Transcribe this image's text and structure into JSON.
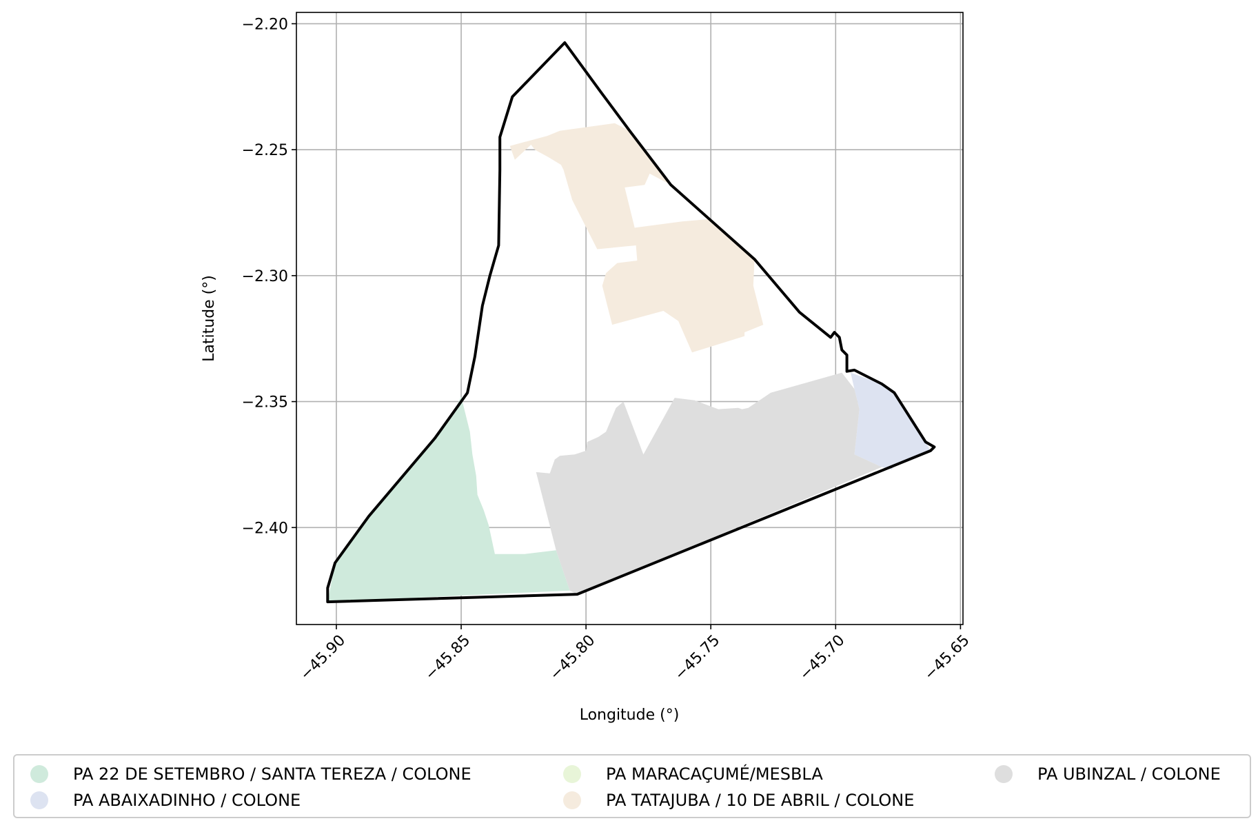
{
  "chart_data": {
    "type": "map",
    "xlabel": "Longitude (°)",
    "ylabel": "Latitude (°)",
    "xlim": [
      -45.916,
      -45.649
    ],
    "ylim": [
      -2.4385,
      -2.1955
    ],
    "xticks": [
      -45.9,
      -45.85,
      -45.8,
      -45.75,
      -45.7,
      -45.65
    ],
    "xtick_labels": [
      "−45.90",
      "−45.85",
      "−45.80",
      "−45.75",
      "−45.70",
      "−45.65"
    ],
    "yticks": [
      -2.2,
      -2.25,
      -2.3,
      -2.35,
      -2.4
    ],
    "ytick_labels": [
      "−2.20",
      "−2.25",
      "−2.30",
      "−2.35",
      "−2.40"
    ],
    "grid": true,
    "legend_position": "bottom",
    "boundary": [
      [
        -45.8085,
        -2.2075
      ],
      [
        -45.7945,
        -2.2265
      ],
      [
        -45.7825,
        -2.2425
      ],
      [
        -45.766,
        -2.264
      ],
      [
        -45.7325,
        -2.2935
      ],
      [
        -45.7145,
        -2.3145
      ],
      [
        -45.702,
        -2.3245
      ],
      [
        -45.7005,
        -2.3225
      ],
      [
        -45.6985,
        -2.3245
      ],
      [
        -45.6975,
        -2.3295
      ],
      [
        -45.6955,
        -2.3315
      ],
      [
        -45.6955,
        -2.338
      ],
      [
        -45.6925,
        -2.3375
      ],
      [
        -45.6815,
        -2.343
      ],
      [
        -45.6765,
        -2.3465
      ],
      [
        -45.664,
        -2.366
      ],
      [
        -45.6605,
        -2.368
      ],
      [
        -45.662,
        -2.3695
      ],
      [
        -45.8035,
        -2.4265
      ],
      [
        -45.9035,
        -2.4295
      ],
      [
        -45.9035,
        -2.424
      ],
      [
        -45.9005,
        -2.414
      ],
      [
        -45.887,
        -2.3955
      ],
      [
        -45.8605,
        -2.3645
      ],
      [
        -45.8475,
        -2.3465
      ],
      [
        -45.8445,
        -2.332
      ],
      [
        -45.8415,
        -2.312
      ],
      [
        -45.8385,
        -2.3
      ],
      [
        -45.835,
        -2.288
      ],
      [
        -45.8345,
        -2.258
      ],
      [
        -45.8345,
        -2.245
      ],
      [
        -45.8295,
        -2.229
      ]
    ],
    "areas": [
      {
        "name": "PA 22 DE SETEMBRO / SANTA TEREZA / COLONE",
        "color": "#cfeadc",
        "polygons": [
          [
            [
              -45.85,
              -2.348
            ],
            [
              -45.8465,
              -2.362
            ],
            [
              -45.8455,
              -2.371
            ],
            [
              -45.844,
              -2.3795
            ],
            [
              -45.8435,
              -2.387
            ],
            [
              -45.841,
              -2.393
            ],
            [
              -45.839,
              -2.399
            ],
            [
              -45.8365,
              -2.4105
            ],
            [
              -45.8245,
              -2.4105
            ],
            [
              -45.812,
              -2.409
            ],
            [
              -45.8065,
              -2.425
            ],
            [
              -45.9035,
              -2.4295
            ],
            [
              -45.9005,
              -2.414
            ],
            [
              -45.887,
              -2.3955
            ],
            [
              -45.8605,
              -2.3645
            ],
            [
              -45.853,
              -2.354
            ]
          ]
        ]
      },
      {
        "name": "PA ABAIXADINHO / COLONE",
        "color": "#dde3f1",
        "polygons": [
          [
            [
              -45.694,
              -2.3385
            ],
            [
              -45.6815,
              -2.343
            ],
            [
              -45.6765,
              -2.3465
            ],
            [
              -45.664,
              -2.366
            ],
            [
              -45.662,
              -2.3695
            ],
            [
              -45.6765,
              -2.3755
            ],
            [
              -45.6775,
              -2.377
            ],
            [
              -45.6815,
              -2.376
            ],
            [
              -45.6925,
              -2.371
            ],
            [
              -45.6905,
              -2.353
            ],
            [
              -45.6925,
              -2.345
            ]
          ]
        ]
      },
      {
        "name": "PA MARACAÇUMÉ/MESBLA",
        "color": "#e8f5d8",
        "polygons": []
      },
      {
        "name": "PA TATAJUBA / 10 DE ABRIL / COLONE",
        "color": "#f5ebde",
        "polygons": [
          [
            [
              -45.8305,
              -2.2485
            ],
            [
              -45.8155,
              -2.2445
            ],
            [
              -45.8105,
              -2.2425
            ],
            [
              -45.7885,
              -2.2395
            ],
            [
              -45.7825,
              -2.2425
            ],
            [
              -45.766,
              -2.264
            ],
            [
              -45.7745,
              -2.2595
            ],
            [
              -45.7765,
              -2.264
            ],
            [
              -45.7845,
              -2.265
            ],
            [
              -45.7805,
              -2.281
            ],
            [
              -45.7615,
              -2.2785
            ],
            [
              -45.7505,
              -2.2775
            ],
            [
              -45.7325,
              -2.2935
            ],
            [
              -45.733,
              -2.304
            ],
            [
              -45.729,
              -2.3195
            ],
            [
              -45.7365,
              -2.3225
            ],
            [
              -45.7365,
              -2.324
            ],
            [
              -45.7575,
              -2.3305
            ],
            [
              -45.763,
              -2.318
            ],
            [
              -45.769,
              -2.314
            ],
            [
              -45.7895,
              -2.3195
            ],
            [
              -45.7935,
              -2.304
            ],
            [
              -45.792,
              -2.299
            ],
            [
              -45.7875,
              -2.295
            ],
            [
              -45.7795,
              -2.294
            ],
            [
              -45.78,
              -2.288
            ],
            [
              -45.7955,
              -2.2895
            ],
            [
              -45.8055,
              -2.27
            ],
            [
              -45.809,
              -2.258
            ],
            [
              -45.81,
              -2.256
            ],
            [
              -45.815,
              -2.253
            ],
            [
              -45.8205,
              -2.25
            ],
            [
              -45.822,
              -2.248
            ],
            [
              -45.8285,
              -2.254
            ]
          ]
        ]
      },
      {
        "name": "PA UBINZAL / COLONE",
        "color": "#dedede",
        "polygons": [
          [
            [
              -45.82,
              -2.378
            ],
            [
              -45.8145,
              -2.3785
            ],
            [
              -45.8125,
              -2.373
            ],
            [
              -45.8105,
              -2.3715
            ],
            [
              -45.8045,
              -2.371
            ],
            [
              -45.8,
              -2.3695
            ],
            [
              -45.7995,
              -2.366
            ],
            [
              -45.795,
              -2.364
            ],
            [
              -45.792,
              -2.362
            ],
            [
              -45.788,
              -2.3525
            ],
            [
              -45.785,
              -2.35
            ],
            [
              -45.777,
              -2.371
            ],
            [
              -45.7645,
              -2.3485
            ],
            [
              -45.7565,
              -2.3495
            ],
            [
              -45.747,
              -2.353
            ],
            [
              -45.739,
              -2.3525
            ],
            [
              -45.7375,
              -2.353
            ],
            [
              -45.735,
              -2.3525
            ],
            [
              -45.726,
              -2.3465
            ],
            [
              -45.6975,
              -2.3385
            ],
            [
              -45.6925,
              -2.345
            ],
            [
              -45.6905,
              -2.353
            ],
            [
              -45.6925,
              -2.371
            ],
            [
              -45.6815,
              -2.376
            ],
            [
              -45.8035,
              -2.4265
            ],
            [
              -45.8065,
              -2.425
            ],
            [
              -45.812,
              -2.409
            ]
          ]
        ]
      }
    ]
  },
  "legend": {
    "items": [
      {
        "label": "PA 22 DE SETEMBRO / SANTA TEREZA / COLONE",
        "color": "#cfeadc"
      },
      {
        "label": "PA MARACAÇUMÉ/MESBLA",
        "color": "#e8f5d8"
      },
      {
        "label": "PA UBINZAL / COLONE",
        "color": "#dedede"
      },
      {
        "label": "PA ABAIXADINHO / COLONE",
        "color": "#dde3f1"
      },
      {
        "label": "PA TATAJUBA / 10 DE ABRIL / COLONE",
        "color": "#f5ebde"
      }
    ]
  }
}
